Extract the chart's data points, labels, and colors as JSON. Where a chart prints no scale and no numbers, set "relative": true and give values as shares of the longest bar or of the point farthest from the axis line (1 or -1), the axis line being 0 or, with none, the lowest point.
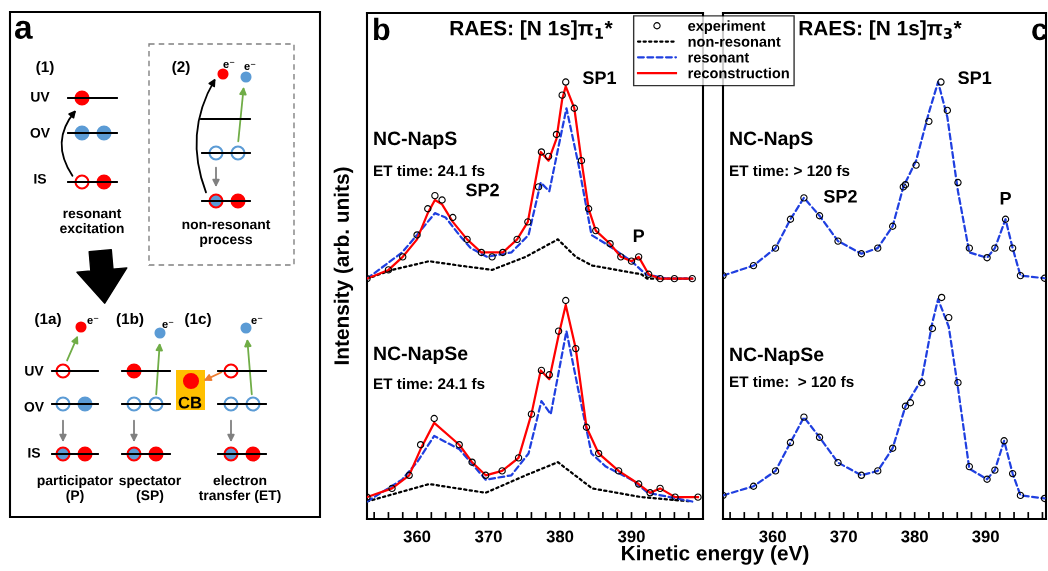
{
  "chart_data": [
    {
      "type": "other",
      "annotations": [
        "a",
        "(1)",
        "UV",
        "OV",
        "IS",
        "resonant\nexcitation",
        "(2)",
        "e⁻",
        "e⁻",
        "non-resonant\nprocess",
        "(1a)",
        "(1b)",
        "(1c)",
        "e⁻",
        "e⁻",
        "e⁻",
        "UV",
        "OV",
        "IS",
        "CB",
        "participator\n(P)",
        "spectator\n(SP)",
        "electron\ntransfer (ET)"
      ]
    },
    {
      "type": "line",
      "title": "RAES: [N 1s]π$_{1}$*",
      "xlabel": "Kinetic energy (eV)",
      "ylabel": "Intensity (arb. units)",
      "relative": true,
      "xlim": [
        353,
        400
      ],
      "xticks": [
        {
          "value": 354,
          "label": null
        },
        {
          "value": 356,
          "label": null
        },
        {
          "value": 358,
          "label": null
        },
        360,
        {
          "value": 362,
          "label": null
        },
        {
          "value": 364,
          "label": null
        },
        {
          "value": 366,
          "label": null
        },
        {
          "value": 368,
          "label": null
        },
        370,
        {
          "value": 372,
          "label": null
        },
        {
          "value": 374,
          "label": null
        },
        {
          "value": 376,
          "label": null
        },
        {
          "value": 378,
          "label": null
        },
        380,
        {
          "value": 382,
          "label": null
        },
        {
          "value": 384,
          "label": null
        },
        {
          "value": 386,
          "label": null
        },
        {
          "value": 388,
          "label": null
        },
        390,
        {
          "value": 392,
          "label": null
        },
        {
          "value": 394,
          "label": null
        },
        {
          "value": 396,
          "label": null
        },
        {
          "value": 398,
          "label": null
        }
      ],
      "legend": "top right",
      "annotations": [
        "b",
        "NC-NapS",
        "ET time: 24.1 fs",
        "NC-NapSe",
        "ET time: 24.1 fs",
        {
          "text": "SP1",
          "x": 380.8,
          "y": 1.0
        },
        {
          "text": "SP2",
          "x": 362.5,
          "y": 0.74
        },
        {
          "text": "P",
          "x": 391,
          "y": 0.6
        }
      ],
      "series": [
        {
          "name": "experiment",
          "type": "scatter",
          "marker": "circle",
          "color": "#000000",
          "x": [
            353,
            356,
            358,
            360,
            361.5,
            362.5,
            363.5,
            365,
            367,
            369,
            370.5,
            372,
            374,
            375.5,
            377,
            377.4,
            378.4,
            379.5,
            380.3,
            380.8,
            382,
            383,
            384,
            385,
            387,
            388.5,
            390,
            391,
            392.4,
            394,
            396,
            398.5
          ],
          "values": [
            0.55,
            0.57,
            0.6,
            0.65,
            0.71,
            0.74,
            0.73,
            0.69,
            0.64,
            0.61,
            0.6,
            0.61,
            0.64,
            0.68,
            0.76,
            0.84,
            0.83,
            0.88,
            0.97,
            1.0,
            0.94,
            0.82,
            0.71,
            0.66,
            0.63,
            0.6,
            0.59,
            0.6,
            0.56,
            0.55,
            0.55,
            0.55
          ]
        },
        {
          "name": "non-resonant",
          "type": "line",
          "line_style": "dotted",
          "color": "#000000",
          "x": [
            353,
            356.5,
            361.7,
            365.9,
            370.5,
            375.2,
            379.7,
            382.2,
            384.5,
            391.4,
            392.2,
            398.5
          ],
          "values": [
            0.55,
            0.57,
            0.59,
            0.58,
            0.57,
            0.6,
            0.64,
            0.6,
            0.58,
            0.56,
            0.55,
            0.55
          ]
        },
        {
          "name": "resonant",
          "type": "line",
          "line_style": "dashed",
          "color": "#1f3fe0",
          "x": [
            353,
            357.9,
            360,
            362.5,
            364,
            365.9,
            367.5,
            369.8,
            373.2,
            375.6,
            377.3,
            378.5,
            380.9,
            382.6,
            384.4,
            386.4,
            390,
            392,
            395,
            398.5
          ],
          "values": [
            0.55,
            0.61,
            0.65,
            0.7,
            0.69,
            0.65,
            0.62,
            0.6,
            0.61,
            0.65,
            0.77,
            0.75,
            0.94,
            0.81,
            0.65,
            0.63,
            0.59,
            0.56,
            0.55,
            0.55
          ]
        },
        {
          "name": "reconstruction",
          "type": "line",
          "line_style": "solid",
          "color": "#ff0000",
          "x": [
            353,
            356,
            358,
            360,
            361.5,
            362.5,
            363.5,
            365,
            367,
            369,
            370.5,
            372,
            374,
            375.5,
            377.3,
            378.4,
            379.5,
            380.3,
            380.8,
            382,
            383,
            384,
            385,
            387,
            388.5,
            390,
            391,
            392.4,
            394,
            396,
            398.5
          ],
          "values": [
            0.55,
            0.57,
            0.6,
            0.64,
            0.7,
            0.73,
            0.72,
            0.68,
            0.64,
            0.61,
            0.61,
            0.61,
            0.64,
            0.68,
            0.84,
            0.82,
            0.87,
            0.96,
            0.99,
            0.94,
            0.82,
            0.71,
            0.66,
            0.63,
            0.6,
            0.59,
            0.6,
            0.56,
            0.55,
            0.55,
            0.55
          ]
        },
        {
          "type": "scatter",
          "marker": "circle",
          "color": "#000000",
          "x": [
            353,
            356.5,
            358.9,
            360.5,
            362.4,
            365.9,
            367.7,
            369.6,
            371.9,
            374.2,
            376,
            377.4,
            378.5,
            379.8,
            380.8,
            382.2,
            383.7,
            385.4,
            388.2,
            391,
            392.6,
            394,
            396.1,
            399.3
          ],
          "values": [
            0.05,
            0.07,
            0.1,
            0.17,
            0.23,
            0.17,
            0.13,
            0.1,
            0.11,
            0.14,
            0.24,
            0.34,
            0.33,
            0.43,
            0.5,
            0.39,
            0.21,
            0.15,
            0.11,
            0.08,
            0.06,
            0.07,
            0.05,
            0.05
          ]
        },
        {
          "type": "line",
          "line_style": "dotted",
          "color": "#000000",
          "x": [
            353,
            361.7,
            369.6,
            375.2,
            379.7,
            384.5,
            391.4,
            398.5
          ],
          "values": [
            0.04,
            0.08,
            0.06,
            0.1,
            0.13,
            0.07,
            0.05,
            0.04
          ]
        },
        {
          "type": "line",
          "line_style": "dashed",
          "color": "#1f3fe0",
          "x": [
            353,
            357.9,
            360,
            362.4,
            365.9,
            369.6,
            373.2,
            375.6,
            377.4,
            378.7,
            380.9,
            382.5,
            384.4,
            386.4,
            390,
            392.3,
            398.5
          ],
          "values": [
            0.04,
            0.09,
            0.13,
            0.19,
            0.16,
            0.09,
            0.1,
            0.15,
            0.27,
            0.24,
            0.43,
            0.3,
            0.15,
            0.12,
            0.09,
            0.06,
            0.04
          ]
        },
        {
          "type": "line",
          "line_style": "solid",
          "color": "#ff0000",
          "x": [
            353,
            356.5,
            358.9,
            360.5,
            362.4,
            365.9,
            367.7,
            369.6,
            371.9,
            374.2,
            376,
            377.3,
            378.5,
            379.8,
            380.8,
            382.2,
            383.7,
            385.4,
            388.2,
            391,
            392.6,
            394,
            396.1,
            399.3
          ],
          "values": [
            0.05,
            0.07,
            0.1,
            0.16,
            0.22,
            0.17,
            0.13,
            0.1,
            0.11,
            0.14,
            0.24,
            0.34,
            0.32,
            0.42,
            0.49,
            0.39,
            0.21,
            0.15,
            0.11,
            0.08,
            0.06,
            0.07,
            0.05,
            0.05
          ]
        }
      ]
    },
    {
      "type": "line",
      "title": "RAES: [N 1s]π$_{3}$*",
      "relative": true,
      "xlim": [
        353,
        398.5
      ],
      "xticks": [
        {
          "value": 354,
          "label": null
        },
        {
          "value": 356,
          "label": null
        },
        {
          "value": 358,
          "label": null
        },
        360,
        {
          "value": 362,
          "label": null
        },
        {
          "value": 364,
          "label": null
        },
        {
          "value": 366,
          "label": null
        },
        {
          "value": 368,
          "label": null
        },
        370,
        {
          "value": 372,
          "label": null
        },
        {
          "value": 374,
          "label": null
        },
        {
          "value": 376,
          "label": null
        },
        {
          "value": 378,
          "label": null
        },
        380,
        {
          "value": 382,
          "label": null
        },
        {
          "value": 384,
          "label": null
        },
        {
          "value": 386,
          "label": null
        },
        {
          "value": 388,
          "label": null
        },
        390,
        {
          "value": 392,
          "label": null
        },
        {
          "value": 394,
          "label": null
        },
        {
          "value": 396,
          "label": null
        },
        {
          "value": 398,
          "label": null
        }
      ],
      "annotations": [
        "c",
        "NC-NapS",
        "ET time: > 120 fs",
        "NC-NapSe",
        "ET time:  > 120 fs",
        {
          "text": "SP1",
          "x": 383.7,
          "y": 1.0
        },
        {
          "text": "SP2",
          "x": 364.4,
          "y": 0.735
        },
        {
          "text": "P",
          "x": 392.8,
          "y": 0.686
        }
      ],
      "series": [
        {
          "type": "scatter",
          "marker": "circle",
          "color": "#000000",
          "x": [
            353,
            357.3,
            360.4,
            362.5,
            364.4,
            366.6,
            369.2,
            372.5,
            374.8,
            376.9,
            378.4,
            378.7,
            380.2,
            382,
            383.7,
            384.6,
            386.1,
            387.7,
            390.2,
            391.3,
            392.8,
            393.8,
            394.9,
            398.3
          ],
          "values": [
            0.557,
            0.58,
            0.62,
            0.686,
            0.735,
            0.694,
            0.636,
            0.607,
            0.62,
            0.67,
            0.76,
            0.765,
            0.81,
            0.91,
            1.0,
            0.935,
            0.77,
            0.62,
            0.598,
            0.62,
            0.686,
            0.62,
            0.557,
            0.551
          ]
        },
        {
          "type": "line",
          "line_style": "dashed",
          "color": "#1f3fe0",
          "x": [
            353,
            357.3,
            360.4,
            362.5,
            364.4,
            366.6,
            369.2,
            372.5,
            374.8,
            376.9,
            378.4,
            380.2,
            382,
            383.3,
            384.6,
            386.1,
            387.7,
            390.2,
            391.3,
            392.8,
            393.8,
            394.9,
            398.3
          ],
          "values": [
            0.557,
            0.58,
            0.62,
            0.686,
            0.735,
            0.694,
            0.636,
            0.607,
            0.62,
            0.67,
            0.76,
            0.82,
            0.93,
            1.0,
            0.92,
            0.75,
            0.61,
            0.598,
            0.62,
            0.686,
            0.62,
            0.557,
            0.551
          ]
        },
        {
          "type": "scatter",
          "marker": "circle",
          "color": "#000000",
          "x": [
            353,
            357.3,
            360.4,
            362.5,
            364.4,
            366.6,
            369.2,
            372.5,
            374.8,
            376.9,
            378.7,
            379.4,
            381,
            382.5,
            383.8,
            384.8,
            386.1,
            387.7,
            390.2,
            391.3,
            392.6,
            393.8,
            394.9,
            398.3
          ],
          "values": [
            0.054,
            0.075,
            0.11,
            0.175,
            0.233,
            0.187,
            0.129,
            0.1,
            0.11,
            0.162,
            0.258,
            0.266,
            0.312,
            0.436,
            0.507,
            0.461,
            0.312,
            0.12,
            0.091,
            0.112,
            0.179,
            0.104,
            0.054,
            0.047
          ]
        },
        {
          "type": "line",
          "line_style": "dashed",
          "color": "#1f3fe0",
          "x": [
            353,
            357.3,
            360.4,
            362.5,
            364.4,
            366.6,
            369.2,
            372.5,
            374.8,
            376.9,
            378.7,
            381,
            382.5,
            383.3,
            384.8,
            386.1,
            387.7,
            390.2,
            391.3,
            392.6,
            393.8,
            394.9,
            398.3
          ],
          "values": [
            0.054,
            0.075,
            0.11,
            0.175,
            0.233,
            0.187,
            0.129,
            0.1,
            0.11,
            0.162,
            0.258,
            0.32,
            0.45,
            0.503,
            0.44,
            0.3,
            0.115,
            0.091,
            0.112,
            0.179,
            0.104,
            0.054,
            0.047
          ]
        }
      ]
    }
  ]
}
